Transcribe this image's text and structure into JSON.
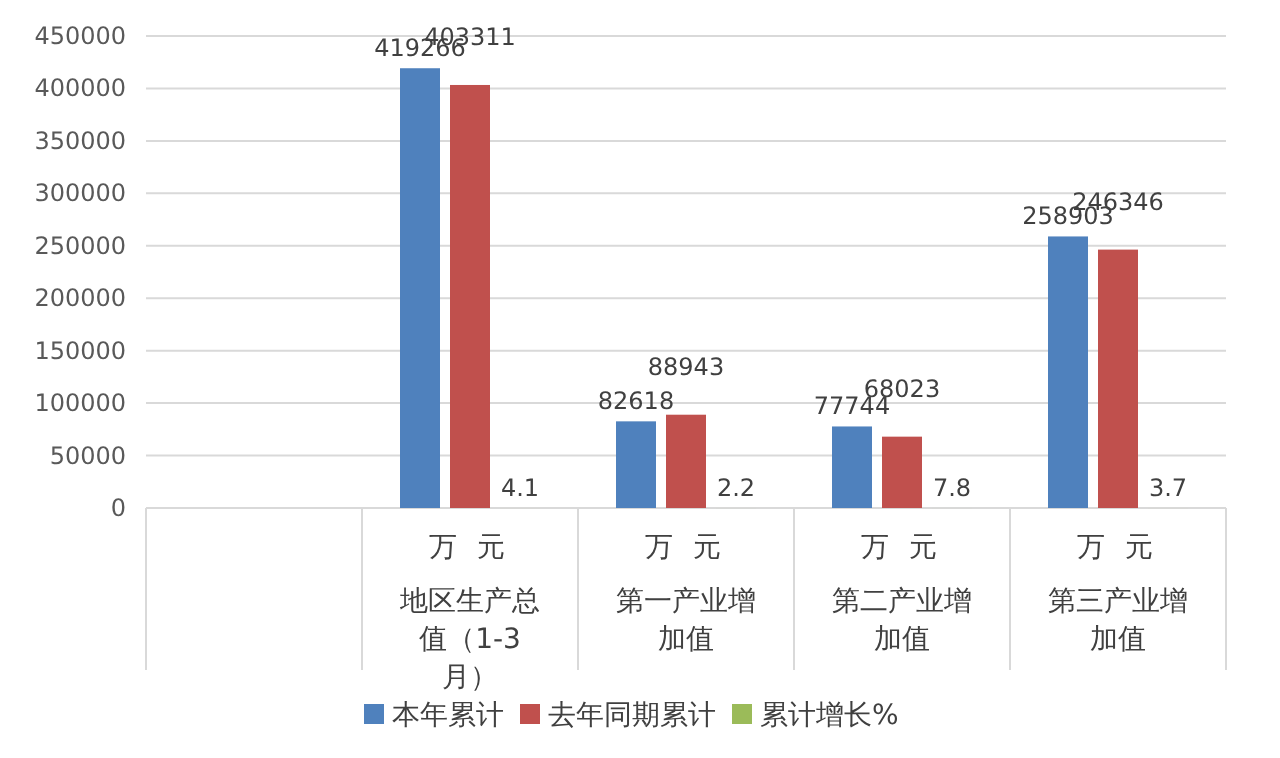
{
  "chart_data": {
    "type": "bar",
    "categories": [
      null,
      "地区生产总值（1-3月）",
      "第一产业增加值",
      "第二产业增加值",
      "第三产业增加值"
    ],
    "series": [
      {
        "name": "本年累计",
        "color": "#4f81bd",
        "values": [
          null,
          419266,
          82618,
          77744,
          258903
        ]
      },
      {
        "name": "去年同期累计",
        "color": "#c0504d",
        "values": [
          null,
          403311,
          88943,
          68023,
          246346
        ]
      },
      {
        "name": "累计增长%",
        "color": "#9bbb59",
        "values": [
          null,
          4.1,
          2.2,
          7.8,
          3.7
        ]
      }
    ],
    "ylim": [
      0,
      450000
    ],
    "yticks": [
      0,
      50000,
      100000,
      150000,
      200000,
      250000,
      300000,
      350000,
      400000,
      450000
    ],
    "grid": "y",
    "legend": "bottom",
    "data_labels": true,
    "annotations": [
      "万 元",
      "万 元",
      "万 元",
      "万 元"
    ]
  }
}
